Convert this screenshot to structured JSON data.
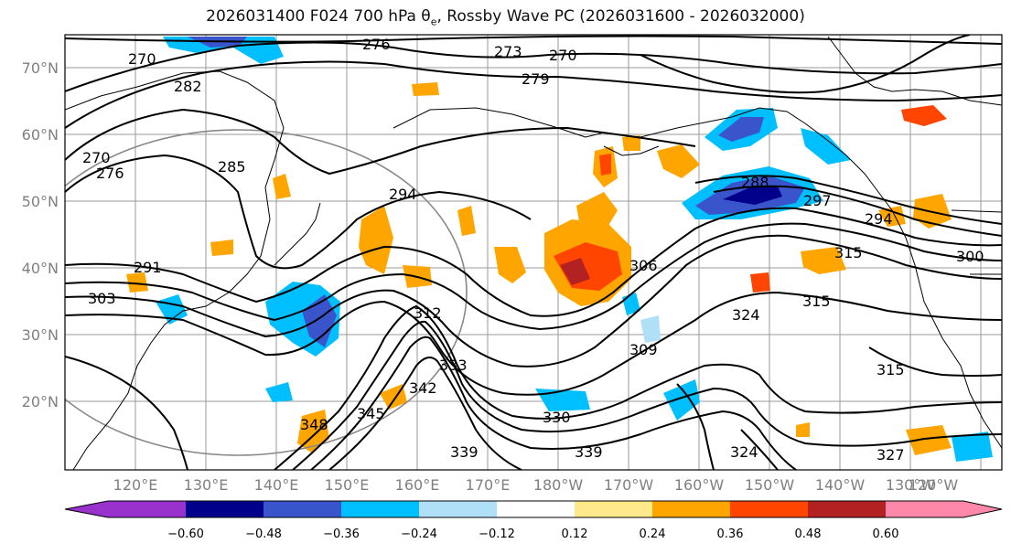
{
  "title": "2026031400 F024 700 hPa θ",
  "title_sub": "e",
  "title_rest": ", Rossby Wave PC (2026031600 - 2026032000)",
  "lat_labels": [
    "70°N",
    "60°N",
    "50°N",
    "40°N",
    "30°N",
    "20°N"
  ],
  "lon_labels": [
    "120°E",
    "130°E",
    "140°E",
    "150°E",
    "160°E",
    "170°E",
    "180°W",
    "170°W",
    "160°W",
    "150°W",
    "140°W",
    "130°W",
    "120°W"
  ],
  "contour_labels": [
    "276",
    "273",
    "270",
    "279",
    "270",
    "276",
    "285",
    "294",
    "294",
    "291",
    "303",
    "309",
    "312",
    "306",
    "330",
    "333",
    "342",
    "345",
    "348",
    "339",
    "339",
    "324",
    "324",
    "315",
    "315",
    "297",
    "300",
    "315",
    "327",
    "282",
    "288",
    "270"
  ],
  "colorbar": {
    "ticks": [
      "−0.60",
      "−0.48",
      "−0.36",
      "−0.24",
      "−0.12",
      "0.12",
      "0.24",
      "0.36",
      "0.48",
      "0.60"
    ],
    "colors": [
      "#9932cc",
      "#00008b",
      "#3a55cc",
      "#00bfff",
      "#b0e0f8",
      "#ffffff",
      "#ffe98a",
      "#ffa500",
      "#ff4500",
      "#b22222",
      "#ff88aa"
    ]
  },
  "anomaly_colors": {
    "orange": "#ffa500",
    "yellow": "#ffe98a",
    "red": "#ff4500",
    "darkred": "#b22222",
    "blue": "#00bfff",
    "lightblue": "#b0e0f8",
    "royal": "#3a55cc",
    "navy": "#00008b"
  }
}
